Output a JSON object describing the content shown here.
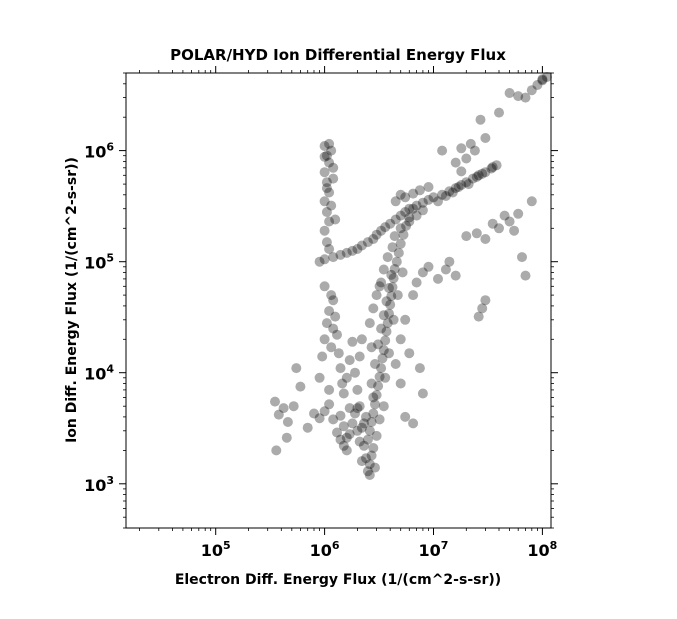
{
  "chart_data": {
    "type": "scatter",
    "title": "POLAR/HYD  Ion Differential Energy Flux",
    "xlabel": "Electron Diff. Energy Flux (1/(cm^2-s-sr))",
    "ylabel": "Ion Diff. Energy Flux (1/(cm^2-s-sr))",
    "xscale": "log",
    "yscale": "log",
    "xlim": [
      15000,
      120000000
    ],
    "ylim": [
      400,
      5000000
    ],
    "x_ticks": [
      {
        "value": 100000,
        "base": "10",
        "exp": "5"
      },
      {
        "value": 1000000,
        "base": "10",
        "exp": "6"
      },
      {
        "value": 10000000,
        "base": "10",
        "exp": "7"
      },
      {
        "value": 100000000,
        "base": "10",
        "exp": "8"
      }
    ],
    "y_ticks": [
      {
        "value": 1000,
        "base": "10",
        "exp": "3"
      },
      {
        "value": 10000,
        "base": "10",
        "exp": "4"
      },
      {
        "value": 100000,
        "base": "10",
        "exp": "5"
      },
      {
        "value": 1000000,
        "base": "10",
        "exp": "6"
      }
    ],
    "grid": false,
    "marker_color": "#000000",
    "marker_alpha": 0.33,
    "points": [
      [
        350000,
        5500
      ],
      [
        380000,
        4200
      ],
      [
        420000,
        4800
      ],
      [
        460000,
        3600
      ],
      [
        520000,
        5000
      ],
      [
        360000,
        2000
      ],
      [
        450000,
        2600
      ],
      [
        600000,
        7500
      ],
      [
        550000,
        11000
      ],
      [
        700000,
        3200
      ],
      [
        800000,
        4300
      ],
      [
        900000,
        3900
      ],
      [
        1000000,
        4500
      ],
      [
        1100000,
        5200
      ],
      [
        1200000,
        3800
      ],
      [
        1300000,
        2900
      ],
      [
        1400000,
        4100
      ],
      [
        1500000,
        3300
      ],
      [
        1600000,
        2600
      ],
      [
        1700000,
        4800
      ],
      [
        900000,
        9000
      ],
      [
        950000,
        14000
      ],
      [
        1000000,
        20000
      ],
      [
        1050000,
        28000
      ],
      [
        1100000,
        36000
      ],
      [
        1150000,
        50000
      ],
      [
        1000000,
        60000
      ],
      [
        1200000,
        45000
      ],
      [
        1250000,
        32000
      ],
      [
        1300000,
        22000
      ],
      [
        1350000,
        15000
      ],
      [
        1400000,
        11000
      ],
      [
        1450000,
        8000
      ],
      [
        1100000,
        7000
      ],
      [
        1500000,
        6500
      ],
      [
        1600000,
        9000
      ],
      [
        1700000,
        13000
      ],
      [
        1800000,
        19000
      ],
      [
        1200000,
        25000
      ],
      [
        1150000,
        17000
      ],
      [
        1000000,
        1100000
      ],
      [
        1050000,
        900000
      ],
      [
        1100000,
        780000
      ],
      [
        1000000,
        640000
      ],
      [
        1050000,
        520000
      ],
      [
        1100000,
        420000
      ],
      [
        1000000,
        350000
      ],
      [
        1050000,
        280000
      ],
      [
        1100000,
        230000
      ],
      [
        1000000,
        190000
      ],
      [
        1150000,
        1000000
      ],
      [
        1200000,
        700000
      ],
      [
        1000000,
        880000
      ],
      [
        1100000,
        1150000
      ],
      [
        1200000,
        560000
      ],
      [
        1050000,
        150000
      ],
      [
        1100000,
        130000
      ],
      [
        1150000,
        320000
      ],
      [
        1250000,
        240000
      ],
      [
        1050000,
        460000
      ],
      [
        900000,
        100000
      ],
      [
        1000000,
        105000
      ],
      [
        1200000,
        110000
      ],
      [
        1400000,
        115000
      ],
      [
        1600000,
        120000
      ],
      [
        1800000,
        125000
      ],
      [
        2000000,
        130000
      ],
      [
        2200000,
        140000
      ],
      [
        2500000,
        150000
      ],
      [
        2800000,
        160000
      ],
      [
        3000000,
        175000
      ],
      [
        3300000,
        190000
      ],
      [
        3600000,
        205000
      ],
      [
        4000000,
        220000
      ],
      [
        4500000,
        240000
      ],
      [
        5000000,
        260000
      ],
      [
        5500000,
        280000
      ],
      [
        6000000,
        300000
      ],
      [
        7000000,
        320000
      ],
      [
        8000000,
        340000
      ],
      [
        9000000,
        360000
      ],
      [
        10000000,
        380000
      ],
      [
        12000000,
        400000
      ],
      [
        14000000,
        430000
      ],
      [
        16000000,
        460000
      ],
      [
        18000000,
        490000
      ],
      [
        20000000,
        520000
      ],
      [
        23000000,
        560000
      ],
      [
        26000000,
        600000
      ],
      [
        30000000,
        640000
      ],
      [
        34000000,
        690000
      ],
      [
        38000000,
        740000
      ],
      [
        15000000,
        420000
      ],
      [
        25000000,
        580000
      ],
      [
        35000000,
        710000
      ],
      [
        11000000,
        350000
      ],
      [
        13000000,
        390000
      ],
      [
        17000000,
        470000
      ],
      [
        21000000,
        500000
      ],
      [
        28000000,
        620000
      ],
      [
        2500000,
        1300
      ],
      [
        2600000,
        1500
      ],
      [
        2700000,
        1800
      ],
      [
        2800000,
        2100
      ],
      [
        2500000,
        2500
      ],
      [
        2600000,
        3000
      ],
      [
        2700000,
        3600
      ],
      [
        2800000,
        4300
      ],
      [
        2900000,
        5200
      ],
      [
        3000000,
        6300
      ],
      [
        3100000,
        7600
      ],
      [
        3200000,
        9200
      ],
      [
        3300000,
        11000
      ],
      [
        3400000,
        13500
      ],
      [
        3500000,
        16000
      ],
      [
        3600000,
        19500
      ],
      [
        3700000,
        23500
      ],
      [
        3800000,
        28000
      ],
      [
        3900000,
        34000
      ],
      [
        4000000,
        41000
      ],
      [
        4100000,
        49000
      ],
      [
        4200000,
        59000
      ],
      [
        4300000,
        71000
      ],
      [
        4400000,
        86000
      ],
      [
        4600000,
        100000
      ],
      [
        4800000,
        120000
      ],
      [
        5000000,
        145000
      ],
      [
        5300000,
        175000
      ],
      [
        5600000,
        210000
      ],
      [
        6000000,
        250000
      ],
      [
        6500000,
        300000
      ],
      [
        2300000,
        2200
      ],
      [
        2400000,
        4000
      ],
      [
        2200000,
        3200
      ],
      [
        3000000,
        2700
      ],
      [
        3200000,
        3800
      ],
      [
        3500000,
        5000
      ],
      [
        2400000,
        1700
      ],
      [
        2600000,
        1200
      ],
      [
        2900000,
        1400
      ],
      [
        2300000,
        3500
      ],
      [
        2700000,
        8000
      ],
      [
        2900000,
        12000
      ],
      [
        3100000,
        18000
      ],
      [
        3300000,
        25000
      ],
      [
        3500000,
        33000
      ],
      [
        3700000,
        44000
      ],
      [
        3900000,
        58000
      ],
      [
        4100000,
        76000
      ],
      [
        2800000,
        6000
      ],
      [
        3600000,
        9000
      ],
      [
        3900000,
        15000
      ],
      [
        4300000,
        30000
      ],
      [
        4700000,
        50000
      ],
      [
        5200000,
        80000
      ],
      [
        2100000,
        5000
      ],
      [
        2000000,
        7000
      ],
      [
        1900000,
        10000
      ],
      [
        2100000,
        14000
      ],
      [
        2200000,
        20000
      ],
      [
        2600000,
        28000
      ],
      [
        2800000,
        38000
      ],
      [
        3000000,
        50000
      ],
      [
        3300000,
        65000
      ],
      [
        3500000,
        85000
      ],
      [
        3800000,
        110000
      ],
      [
        4200000,
        135000
      ],
      [
        2700000,
        17000
      ],
      [
        3200000,
        60000
      ],
      [
        4400000,
        170000
      ],
      [
        5000000,
        200000
      ],
      [
        6000000,
        230000
      ],
      [
        7000000,
        260000
      ],
      [
        8000000,
        290000
      ],
      [
        4500000,
        350000
      ],
      [
        5000000,
        400000
      ],
      [
        5500000,
        380000
      ],
      [
        6500000,
        410000
      ],
      [
        7500000,
        440000
      ],
      [
        9000000,
        470000
      ],
      [
        1600000,
        2000
      ],
      [
        1700000,
        2800
      ],
      [
        1800000,
        3500
      ],
      [
        1900000,
        4300
      ],
      [
        2000000,
        3000
      ],
      [
        2100000,
        2400
      ],
      [
        2200000,
        1600
      ],
      [
        1500000,
        2200
      ],
      [
        1400000,
        2500
      ],
      [
        2000000,
        4800
      ],
      [
        5500000,
        4000
      ],
      [
        6500000,
        3500
      ],
      [
        7500000,
        11000
      ],
      [
        8000000,
        6500
      ],
      [
        5000000,
        8000
      ],
      [
        4500000,
        12000
      ],
      [
        6000000,
        15000
      ],
      [
        5000000,
        20000
      ],
      [
        5500000,
        30000
      ],
      [
        6500000,
        50000
      ],
      [
        7000000,
        65000
      ],
      [
        8000000,
        80000
      ],
      [
        9000000,
        90000
      ],
      [
        11000000,
        70000
      ],
      [
        13000000,
        85000
      ],
      [
        14000000,
        100000
      ],
      [
        16000000,
        75000
      ],
      [
        20000000,
        170000
      ],
      [
        25000000,
        180000
      ],
      [
        30000000,
        160000
      ],
      [
        40000000,
        200000
      ],
      [
        50000000,
        230000
      ],
      [
        60000000,
        270000
      ],
      [
        80000000,
        350000
      ],
      [
        45000000,
        260000
      ],
      [
        35000000,
        220000
      ],
      [
        55000000,
        190000
      ],
      [
        65000000,
        110000
      ],
      [
        70000000,
        75000
      ],
      [
        28000000,
        38000
      ],
      [
        26000000,
        32000
      ],
      [
        30000000,
        45000
      ],
      [
        12000000,
        1000000
      ],
      [
        18000000,
        1050000
      ],
      [
        20000000,
        850000
      ],
      [
        22000000,
        1150000
      ],
      [
        27000000,
        1900000
      ],
      [
        40000000,
        2200000
      ],
      [
        50000000,
        3300000
      ],
      [
        60000000,
        3100000
      ],
      [
        70000000,
        3000000
      ],
      [
        80000000,
        3500000
      ],
      [
        90000000,
        3900000
      ],
      [
        100000000,
        4300000
      ],
      [
        110000000,
        4600000
      ],
      [
        100000000,
        4400000
      ],
      [
        30000000,
        1300000
      ],
      [
        24000000,
        1000000
      ],
      [
        18000000,
        650000
      ],
      [
        16000000,
        780000
      ]
    ]
  }
}
